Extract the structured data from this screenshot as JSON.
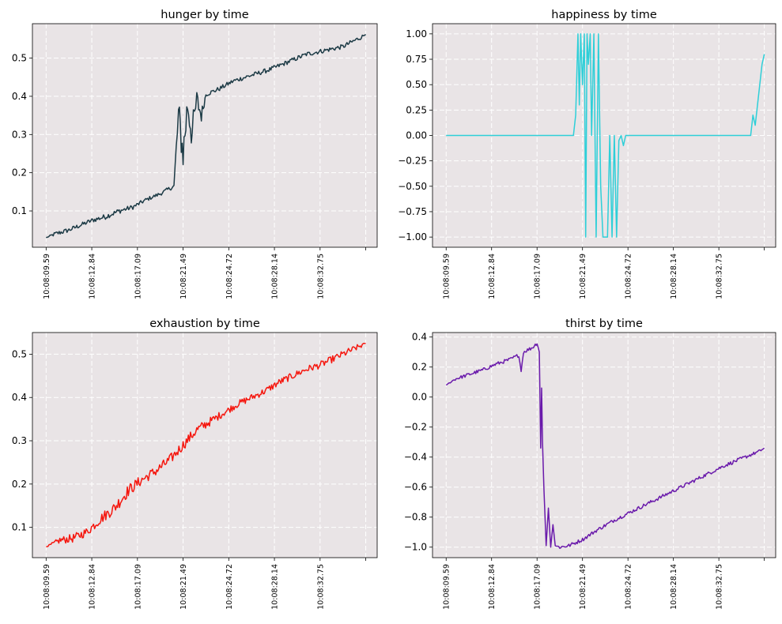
{
  "figure": {
    "background": "#ffffff",
    "axes_background": "#e9e4e6",
    "grid_color": "#ffffff"
  },
  "chart_data": [
    {
      "type": "line",
      "title": "hunger by time",
      "xlabel": "",
      "ylabel": "",
      "color": "#1c3a45",
      "grid": true,
      "grid_style": "dashed",
      "x_ticklabels": [
        "10:08:09.59",
        "10:08:12.84",
        "10:08:17.09",
        "10:08:21.49",
        "10:08:24.72",
        "10:08:28.14",
        "10:08:32.75",
        ""
      ],
      "xlim": [
        -0.3,
        7.25
      ],
      "ylim": [
        0.005,
        0.59
      ],
      "yticks": [
        0.1,
        0.2,
        0.3,
        0.4,
        0.5
      ],
      "ytick_labels": [
        "0.1",
        "0.2",
        "0.3",
        "0.4",
        "0.5"
      ],
      "series": [
        {
          "x": [
            0.0,
            0.2,
            0.5,
            0.8,
            1.0,
            1.3,
            1.6,
            1.9,
            2.2,
            2.5,
            2.8,
            2.85,
            2.9,
            3.0,
            3.1,
            3.2,
            3.3,
            3.4,
            3.5,
            3.8,
            4.1,
            4.5,
            4.9,
            5.3,
            5.7,
            6.1,
            6.5,
            6.9,
            7.0
          ],
          "y": [
            0.03,
            0.04,
            0.05,
            0.065,
            0.075,
            0.085,
            0.1,
            0.11,
            0.13,
            0.145,
            0.165,
            0.26,
            0.35,
            0.25,
            0.38,
            0.3,
            0.39,
            0.35,
            0.405,
            0.42,
            0.44,
            0.455,
            0.47,
            0.49,
            0.51,
            0.52,
            0.53,
            0.555,
            0.562
          ],
          "noise": [
            0.0,
            0.006,
            0.006,
            0.006,
            0.006,
            0.007,
            0.007,
            0.006,
            0.005,
            0.005,
            0.006,
            0.03,
            0.05,
            0.05,
            0.05,
            0.05,
            0.03,
            0.02,
            0.006,
            0.006,
            0.006,
            0.006,
            0.006,
            0.006,
            0.006,
            0.006,
            0.006,
            0.006,
            0.0
          ]
        }
      ]
    },
    {
      "type": "line",
      "title": "happiness by time",
      "xlabel": "",
      "ylabel": "",
      "color": "#2ecfd8",
      "grid": true,
      "grid_style": "dashed",
      "x_ticklabels": [
        "10:08:09.59",
        "10:08:12.84",
        "10:08:17.09",
        "10:08:21.49",
        "10:08:24.72",
        "10:08:28.14",
        "10:08:32.75",
        ""
      ],
      "xlim": [
        -0.3,
        7.25
      ],
      "ylim": [
        -1.1,
        1.1
      ],
      "yticks": [
        -1.0,
        -0.75,
        -0.5,
        -0.25,
        0.0,
        0.25,
        0.5,
        0.75,
        1.0
      ],
      "ytick_labels": [
        "−1.00",
        "−0.75",
        "−0.50",
        "−0.25",
        "0.00",
        "0.25",
        "0.50",
        "0.75",
        "1.00"
      ],
      "series": [
        {
          "x": [
            0.0,
            2.8,
            2.85,
            2.9,
            2.93,
            2.96,
            3.0,
            3.04,
            3.07,
            3.1,
            3.13,
            3.17,
            3.2,
            3.25,
            3.3,
            3.35,
            3.4,
            3.45,
            3.5,
            3.55,
            3.6,
            3.65,
            3.7,
            3.75,
            3.8,
            3.85,
            3.9,
            3.95,
            4.0,
            6.7,
            6.75,
            6.8,
            6.85,
            6.9,
            6.95,
            7.0
          ],
          "y": [
            0.0,
            0.0,
            0.2,
            1.0,
            0.3,
            1.0,
            0.5,
            1.0,
            -1.0,
            1.0,
            0.7,
            1.0,
            0.0,
            1.0,
            -1.0,
            1.0,
            -0.5,
            -1.0,
            -1.0,
            -1.0,
            0.0,
            -1.0,
            0.0,
            -1.0,
            -0.05,
            0.0,
            -0.1,
            0.0,
            0.0,
            0.0,
            0.2,
            0.1,
            0.3,
            0.5,
            0.7,
            0.8
          ]
        }
      ]
    },
    {
      "type": "line",
      "title": "exhaustion by time",
      "xlabel": "",
      "ylabel": "",
      "color": "#f5170f",
      "grid": true,
      "grid_style": "dashed",
      "x_ticklabels": [
        "10:08:09.59",
        "10:08:12.84",
        "10:08:17.09",
        "10:08:21.49",
        "10:08:24.72",
        "10:08:28.14",
        "10:08:32.75",
        ""
      ],
      "xlim": [
        -0.3,
        7.25
      ],
      "ylim": [
        0.03,
        0.55
      ],
      "yticks": [
        0.1,
        0.2,
        0.3,
        0.4,
        0.5
      ],
      "ytick_labels": [
        "0.1",
        "0.2",
        "0.3",
        "0.4",
        "0.5"
      ],
      "series": [
        {
          "x": [
            0.0,
            0.3,
            0.6,
            0.9,
            1.2,
            1.5,
            1.8,
            2.1,
            2.4,
            2.7,
            3.0,
            3.3,
            3.6,
            3.9,
            4.2,
            4.5,
            4.8,
            5.1,
            5.4,
            5.7,
            6.0,
            6.3,
            6.6,
            6.9,
            7.0
          ],
          "y": [
            0.055,
            0.07,
            0.075,
            0.09,
            0.12,
            0.145,
            0.185,
            0.21,
            0.23,
            0.255,
            0.29,
            0.325,
            0.345,
            0.365,
            0.385,
            0.4,
            0.415,
            0.435,
            0.45,
            0.465,
            0.475,
            0.49,
            0.505,
            0.52,
            0.525
          ],
          "noise": [
            0.0,
            0.008,
            0.01,
            0.01,
            0.012,
            0.014,
            0.014,
            0.012,
            0.012,
            0.012,
            0.012,
            0.012,
            0.01,
            0.008,
            0.008,
            0.008,
            0.008,
            0.008,
            0.008,
            0.008,
            0.008,
            0.008,
            0.008,
            0.006,
            0.0
          ]
        }
      ]
    },
    {
      "type": "line",
      "title": "thirst by time",
      "xlabel": "",
      "ylabel": "",
      "color": "#6a1aab",
      "grid": true,
      "grid_style": "dashed",
      "x_ticklabels": [
        "10:08:09.59",
        "10:08:12.84",
        "10:08:17.09",
        "10:08:21.49",
        "10:08:24.72",
        "10:08:28.14",
        "10:08:32.75",
        ""
      ],
      "xlim": [
        -0.3,
        7.25
      ],
      "ylim": [
        -1.07,
        0.43
      ],
      "yticks": [
        -1.0,
        -0.8,
        -0.6,
        -0.4,
        -0.2,
        0.0,
        0.2,
        0.4
      ],
      "ytick_labels": [
        "−1.0",
        "−0.8",
        "−0.6",
        "−0.4",
        "−0.2",
        "0.0",
        "0.2",
        "0.4"
      ],
      "series": [
        {
          "x": [
            0.0,
            0.2,
            0.5,
            0.8,
            1.1,
            1.4,
            1.6,
            1.65,
            1.7,
            1.9,
            2.0,
            2.05,
            2.08,
            2.1,
            2.12,
            2.15,
            2.2,
            2.25,
            2.3,
            2.35,
            2.4,
            2.5,
            2.7,
            3.0,
            3.3,
            3.7,
            4.1,
            4.5,
            4.9,
            5.3,
            5.7,
            6.1,
            6.5,
            6.9,
            7.0
          ],
          "y": [
            0.08,
            0.12,
            0.15,
            0.18,
            0.22,
            0.25,
            0.28,
            0.17,
            0.3,
            0.33,
            0.36,
            0.3,
            -0.34,
            0.06,
            -0.3,
            -0.6,
            -0.99,
            -0.74,
            -1.0,
            -0.85,
            -0.99,
            -1.0,
            -0.99,
            -0.95,
            -0.89,
            -0.82,
            -0.76,
            -0.7,
            -0.64,
            -0.58,
            -0.52,
            -0.46,
            -0.41,
            -0.36,
            -0.34
          ],
          "noise": [
            0.0,
            0.01,
            0.012,
            0.012,
            0.012,
            0.012,
            0.012,
            0.0,
            0.012,
            0.012,
            0.01,
            0.0,
            0.0,
            0.0,
            0.0,
            0.0,
            0.0,
            0.0,
            0.0,
            0.0,
            0.0,
            0.012,
            0.012,
            0.012,
            0.012,
            0.012,
            0.012,
            0.012,
            0.012,
            0.012,
            0.012,
            0.012,
            0.012,
            0.01,
            0.0
          ]
        }
      ]
    }
  ]
}
